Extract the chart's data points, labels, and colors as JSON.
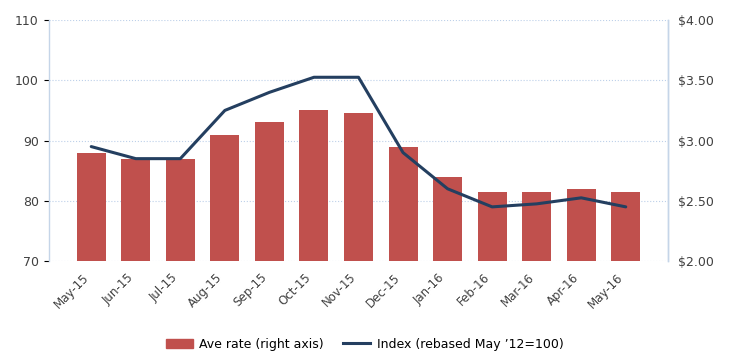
{
  "categories": [
    "May-15",
    "Jun-15",
    "Jul-15",
    "Aug-15",
    "Sep-15",
    "Oct-15",
    "Nov-15",
    "Dec-15",
    "Jan-16",
    "Feb-16",
    "Mar-16",
    "Apr-16",
    "May-16"
  ],
  "bar_values": [
    88,
    87,
    87,
    91,
    93,
    95,
    94.5,
    89,
    84,
    81.5,
    81.5,
    82,
    81.5
  ],
  "line_values": [
    89,
    87,
    87,
    95,
    98,
    100.5,
    100.5,
    88,
    82,
    79,
    79.5,
    80.5,
    79
  ],
  "bar_color": "#c0504d",
  "line_color": "#243f60",
  "left_ylim": [
    70,
    110
  ],
  "left_yticks": [
    70,
    80,
    90,
    100,
    110
  ],
  "right_ylim": [
    2.0,
    4.0
  ],
  "right_yticks": [
    2.0,
    2.5,
    3.0,
    3.5,
    4.0
  ],
  "right_yticklabels": [
    "$2.00",
    "$2.50",
    "$3.00",
    "$3.50",
    "$4.00"
  ],
  "left_yticklabels": [
    "70",
    "80",
    "90",
    "100",
    "110"
  ],
  "legend_bar_label": "Ave rate (right axis)",
  "legend_line_label": "Index (rebased May ’12=100)",
  "grid_color": "#bdd0e9",
  "spine_color": "#c5d5e8",
  "background_color": "#ffffff",
  "tick_label_color": "#404040",
  "figsize": [
    7.29,
    3.62
  ],
  "dpi": 100
}
